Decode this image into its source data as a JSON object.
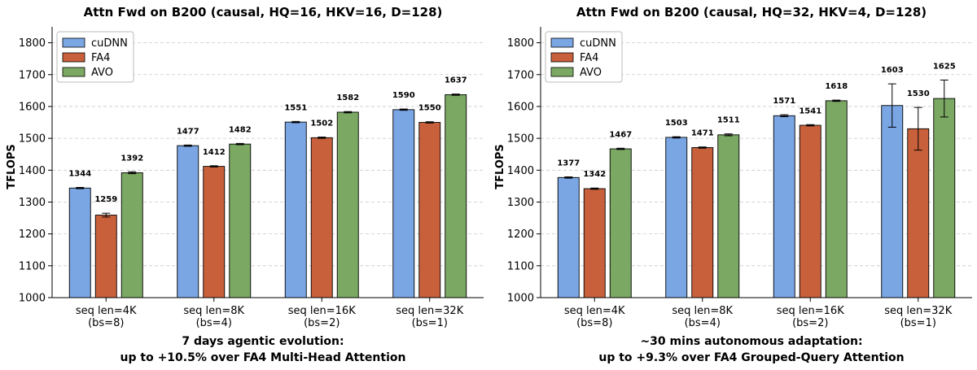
{
  "chart_data": [
    {
      "type": "bar",
      "title": "Attn Fwd on B200 (causal, HQ=16, HKV=16, D=128)",
      "ylabel": "TFLOPS",
      "xlabel": "",
      "ylim": [
        1000,
        1850
      ],
      "yticks": [
        1000,
        1100,
        1200,
        1300,
        1400,
        1500,
        1600,
        1700,
        1800
      ],
      "grid": true,
      "legend_position": "top-left",
      "categories": [
        {
          "line1": "seq len=4K",
          "line2": "(bs=8)"
        },
        {
          "line1": "seq len=8K",
          "line2": "(bs=4)"
        },
        {
          "line1": "seq len=16K",
          "line2": "(bs=2)"
        },
        {
          "line1": "seq len=32K",
          "line2": "(bs=1)"
        }
      ],
      "series": [
        {
          "name": "cuDNN",
          "color": "#7aa6e4",
          "values": [
            1344,
            1477,
            1551,
            1590
          ],
          "errors": [
            2,
            2,
            2,
            2
          ]
        },
        {
          "name": "FA4",
          "color": "#c8603b",
          "values": [
            1259,
            1412,
            1502,
            1550
          ],
          "errors": [
            6,
            2,
            2,
            2
          ]
        },
        {
          "name": "AVO",
          "color": "#7ba862",
          "values": [
            1392,
            1482,
            1582,
            1637
          ],
          "errors": [
            3,
            2,
            2,
            2
          ]
        }
      ],
      "caption_line1": "7 days agentic evolution:",
      "caption_line2": "up to +10.5% over FA4 Multi-Head Attention"
    },
    {
      "type": "bar",
      "title": "Attn Fwd on B200 (causal, HQ=32, HKV=4, D=128)",
      "ylabel": "TFLOPS",
      "xlabel": "",
      "ylim": [
        1000,
        1850
      ],
      "yticks": [
        1000,
        1100,
        1200,
        1300,
        1400,
        1500,
        1600,
        1700,
        1800
      ],
      "grid": true,
      "legend_position": "top-left",
      "categories": [
        {
          "line1": "seq len=4K",
          "line2": "(bs=8)"
        },
        {
          "line1": "seq len=8K",
          "line2": "(bs=4)"
        },
        {
          "line1": "seq len=16K",
          "line2": "(bs=2)"
        },
        {
          "line1": "seq len=32K",
          "line2": "(bs=1)"
        }
      ],
      "series": [
        {
          "name": "cuDNN",
          "color": "#7aa6e4",
          "values": [
            1377,
            1503,
            1571,
            1603
          ],
          "errors": [
            2,
            2,
            3,
            68
          ]
        },
        {
          "name": "FA4",
          "color": "#c8603b",
          "values": [
            1342,
            1471,
            1541,
            1530
          ],
          "errors": [
            2,
            2,
            2,
            67
          ]
        },
        {
          "name": "AVO",
          "color": "#7ba862",
          "values": [
            1467,
            1511,
            1618,
            1625
          ],
          "errors": [
            2,
            3,
            2,
            58
          ]
        }
      ],
      "caption_line1": "~30 mins autonomous adaptation:",
      "caption_line2": "up to +9.3% over FA4 Grouped-Query Attention"
    }
  ]
}
